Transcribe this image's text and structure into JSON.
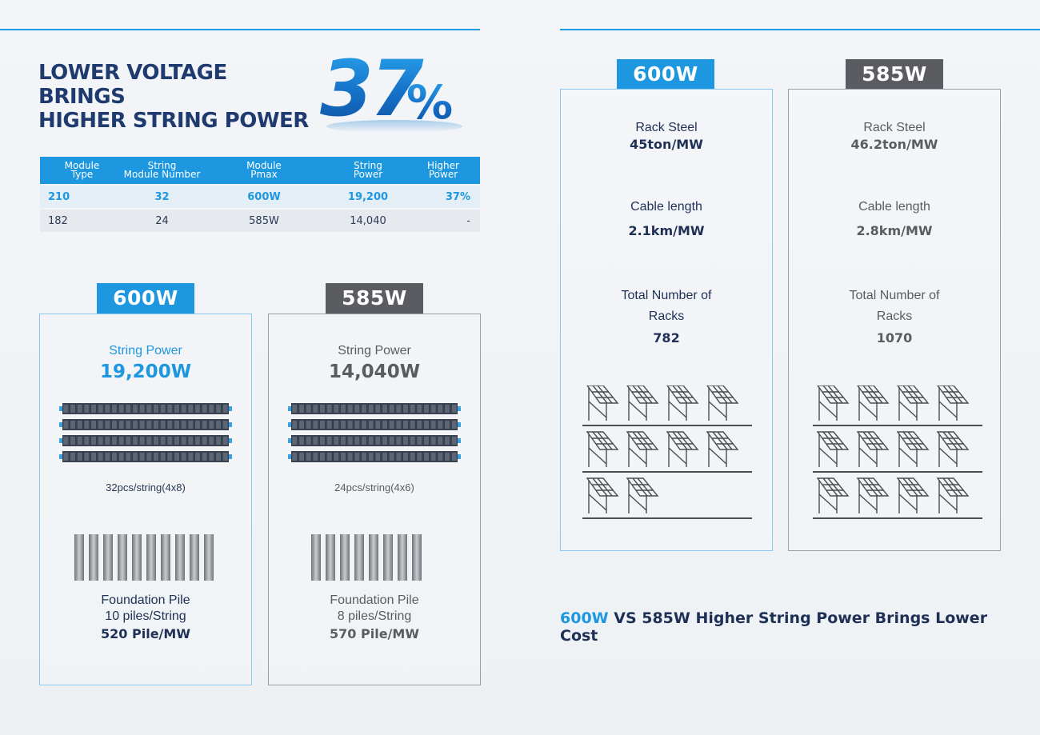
{
  "headline": {
    "line1": "LOWER VOLTAGE BRINGS",
    "line2": "HIGHER STRING POWER",
    "big_number": "37",
    "big_symbol": "%"
  },
  "table": {
    "headers": [
      {
        "l1": "Module",
        "l2": "Type"
      },
      {
        "l1": "String",
        "l2": "Module Number"
      },
      {
        "l1": "Module",
        "l2": "Pmax"
      },
      {
        "l1": "String",
        "l2": "Power"
      },
      {
        "l1": "Higher",
        "l2": "Power"
      }
    ],
    "rows": [
      [
        "210",
        "32",
        "600W",
        "19,200",
        "37%"
      ],
      [
        "182",
        "24",
        "585W",
        "14,040",
        "-"
      ]
    ]
  },
  "left_600": {
    "tag": "600W",
    "string_power_label": "String Power",
    "string_power_value": "19,200W",
    "modules_caption": "32pcs/string(4x8)",
    "pile_label": "Foundation Pile",
    "pile_per_string": "10 piles/String",
    "pile_per_mw": "520 Pile/MW"
  },
  "left_585": {
    "tag": "585W",
    "string_power_label": "String Power",
    "string_power_value": "14,040W",
    "modules_caption": "24pcs/string(4x6)",
    "pile_label": "Foundation Pile",
    "pile_per_string": "8 piles/String",
    "pile_per_mw": "570 Pile/MW"
  },
  "right_600": {
    "tag": "600W",
    "rack_steel_label": "Rack Steel",
    "rack_steel_value": "45ton/MW",
    "cable_label": "Cable length",
    "cable_value": "2.1km/MW",
    "racks_label_1": "Total Number of",
    "racks_label_2": "Racks",
    "racks_value": "782"
  },
  "right_585": {
    "tag": "585W",
    "rack_steel_label": "Rack Steel",
    "rack_steel_value": "46.2ton/MW",
    "cable_label": "Cable length",
    "cable_value": "2.8km/MW",
    "racks_label_1": "Total Number of",
    "racks_label_2": "Racks",
    "racks_value": "1070"
  },
  "footer": {
    "accent": "600W",
    "rest": " VS 585W Higher String Power Brings Lower Cost"
  },
  "colors": {
    "accent": "#1c97e0",
    "navy": "#1f3056",
    "gray": "#5a5c61"
  },
  "icons": {
    "modules": "solar-module-row-icon",
    "piles": "foundation-pile-icon",
    "racks": "solar-rack-icon"
  }
}
